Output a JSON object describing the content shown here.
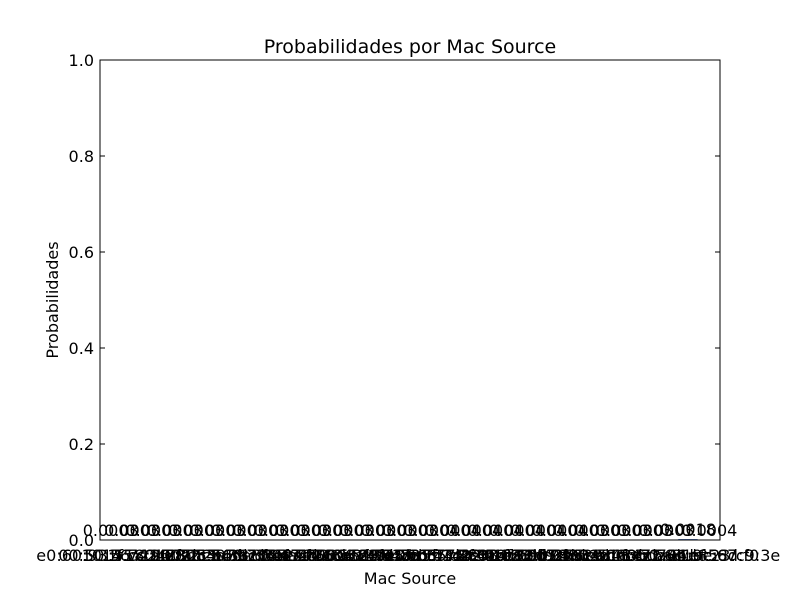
{
  "chart_data": {
    "type": "bar",
    "title": "Probabilidades por Mac Source",
    "xlabel": "Mac Source",
    "ylabel": "Probabilidades",
    "ylim": [
      0,
      1.0
    ],
    "yticks": [
      "0.0",
      "0.2",
      "0.4",
      "0.6",
      "0.8",
      "1.0"
    ],
    "grid": false,
    "categories": [
      "e0:60:93:55:21:78",
      "00:50:56:c0:00:08",
      "10:1f:74:16:22:3a",
      "14:cc:20:8d:2e:8b",
      "18:a6:f7:55:6d:10",
      "24:0a:c4:66:27:ef",
      "28:6c:07:e8:45:a9",
      "2c:56:dc:39:a2:71",
      "34:97:f6:2e:50:c4",
      "38:d5:47:80:8b:21",
      "3c:a9:f4:60:91:fd",
      "48:5d:60:12:7e:33",
      "4c:cc:6a:88:0b:5f",
      "50:e5:49:3d:c6:14",
      "5c:f9:38:a1:77:02",
      "60:45:cb:14:2e:96",
      "64:66:b3:8f:30:d7",
      "70:85:c2:41:9a:6b",
      "74:d4:35:e2:0f:58",
      "78:24:af:6d:b3:90",
      "80:1f:02:c7:55:2a",
      "84:16:f9:3b:ee:41",
      "88:d7:f6:29:18:cc",
      "90:2b:34:b6:47:73",
      "94:de:80:05:6a:1e",
      "9c:5c:8e:da:31:85",
      "a0:f3:c1:44:bc:67",
      "ac:22:0b:9e:8d:f0",
      "b0:6e:bf:23:c9:3e"
    ],
    "values": [
      0.0003,
      0.0003,
      0.0003,
      0.0003,
      0.0003,
      0.0003,
      0.0003,
      0.0003,
      0.0003,
      0.0003,
      0.0003,
      0.0003,
      0.0003,
      0.0003,
      0.0003,
      0.0004,
      0.0004,
      0.0004,
      0.0004,
      0.0004,
      0.0004,
      0.0004,
      0.0003,
      0.0003,
      0.0003,
      0.0003,
      0.0003,
      0.0018,
      0.0004
    ],
    "data_labels": [
      "0.0003",
      "0.0003",
      "0.0003",
      "0.0003",
      "0.0003",
      "0.0003",
      "0.0003",
      "0.0003",
      "0.0003",
      "0.0003",
      "0.0003",
      "0.0003",
      "0.0003",
      "0.0003",
      "0.0003",
      "0.0004",
      "0.0004",
      "0.0004",
      "0.0004",
      "0.0004",
      "0.0004",
      "0.0004",
      "0.0003",
      "0.0003",
      "0.0003",
      "0.0003",
      "0.0003",
      "0.0018",
      "0.0004"
    ]
  }
}
